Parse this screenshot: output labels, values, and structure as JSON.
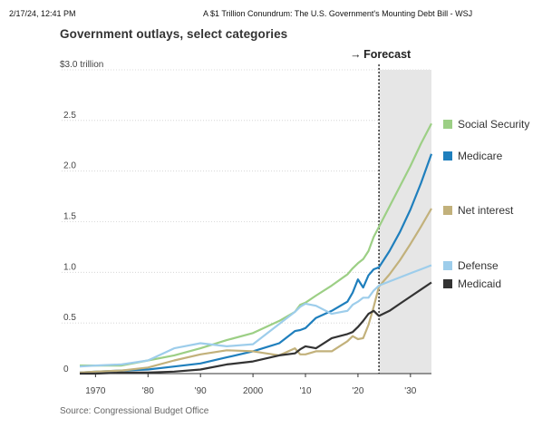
{
  "header": {
    "timestamp": "2/17/24, 12:41 PM",
    "document_title": "A $1 Trillion Conundrum: The U.S. Government's Mounting Debt Bill - WSJ"
  },
  "chart_data": {
    "type": "line",
    "title": "Government outlays, select categories",
    "unit_label": "$3.0 trillion",
    "forecast_label": "Forecast",
    "forecast_start": 2024,
    "xlim": [
      1967,
      2034
    ],
    "ylim": [
      0,
      3.0
    ],
    "y_ticks": [
      {
        "value": 0,
        "label": "0"
      },
      {
        "value": 0.5,
        "label": "0.5"
      },
      {
        "value": 1.0,
        "label": "1.0"
      },
      {
        "value": 1.5,
        "label": "1.5"
      },
      {
        "value": 2.0,
        "label": "2.0"
      },
      {
        "value": 2.5,
        "label": "2.5"
      },
      {
        "value": 3.0,
        "label": "$3.0 trillion"
      }
    ],
    "x_ticks": [
      {
        "value": 1970,
        "label": "1970"
      },
      {
        "value": 1980,
        "label": "'80"
      },
      {
        "value": 1990,
        "label": "'90"
      },
      {
        "value": 2000,
        "label": "2000"
      },
      {
        "value": 2010,
        "label": "'10"
      },
      {
        "value": 2020,
        "label": "'20"
      },
      {
        "value": 2030,
        "label": "'30"
      }
    ],
    "x": [
      1967,
      1970,
      1975,
      1980,
      1985,
      1990,
      1995,
      2000,
      2005,
      2008,
      2009,
      2010,
      2012,
      2015,
      2018,
      2019,
      2020,
      2021,
      2022,
      2023,
      2024,
      2026,
      2028,
      2030,
      2032,
      2034
    ],
    "series": [
      {
        "name": "Social Security",
        "color": "#9ccf85",
        "values": [
          0.08,
          0.08,
          0.08,
          0.13,
          0.18,
          0.25,
          0.33,
          0.4,
          0.52,
          0.61,
          0.68,
          0.7,
          0.77,
          0.87,
          0.98,
          1.04,
          1.09,
          1.13,
          1.21,
          1.35,
          1.45,
          1.65,
          1.85,
          2.05,
          2.27,
          2.47
        ]
      },
      {
        "name": "Medicare",
        "color": "#1f7fbd",
        "values": [
          0.01,
          0.02,
          0.03,
          0.04,
          0.07,
          0.1,
          0.16,
          0.22,
          0.3,
          0.42,
          0.43,
          0.45,
          0.55,
          0.62,
          0.71,
          0.8,
          0.93,
          0.85,
          0.97,
          1.03,
          1.05,
          1.21,
          1.4,
          1.62,
          1.88,
          2.17
        ]
      },
      {
        "name": "Net interest",
        "color": "#c2b17b",
        "values": [
          0.01,
          0.02,
          0.03,
          0.06,
          0.13,
          0.19,
          0.23,
          0.22,
          0.18,
          0.25,
          0.19,
          0.19,
          0.22,
          0.22,
          0.32,
          0.37,
          0.34,
          0.35,
          0.48,
          0.66,
          0.86,
          0.98,
          1.12,
          1.28,
          1.45,
          1.63
        ]
      },
      {
        "name": "Defense",
        "color": "#9dcdeb",
        "values": [
          0.07,
          0.08,
          0.09,
          0.13,
          0.25,
          0.3,
          0.27,
          0.29,
          0.49,
          0.61,
          0.66,
          0.69,
          0.67,
          0.59,
          0.62,
          0.68,
          0.71,
          0.75,
          0.75,
          0.82,
          0.87,
          0.91,
          0.95,
          0.99,
          1.03,
          1.07
        ]
      },
      {
        "name": "Medicaid",
        "color": "#333333",
        "values": [
          0.0,
          0.0,
          0.01,
          0.01,
          0.02,
          0.04,
          0.09,
          0.12,
          0.18,
          0.2,
          0.24,
          0.27,
          0.25,
          0.35,
          0.39,
          0.41,
          0.46,
          0.52,
          0.59,
          0.62,
          0.57,
          0.62,
          0.69,
          0.76,
          0.83,
          0.9
        ]
      }
    ],
    "source": "Source: Congressional Budget Office"
  }
}
